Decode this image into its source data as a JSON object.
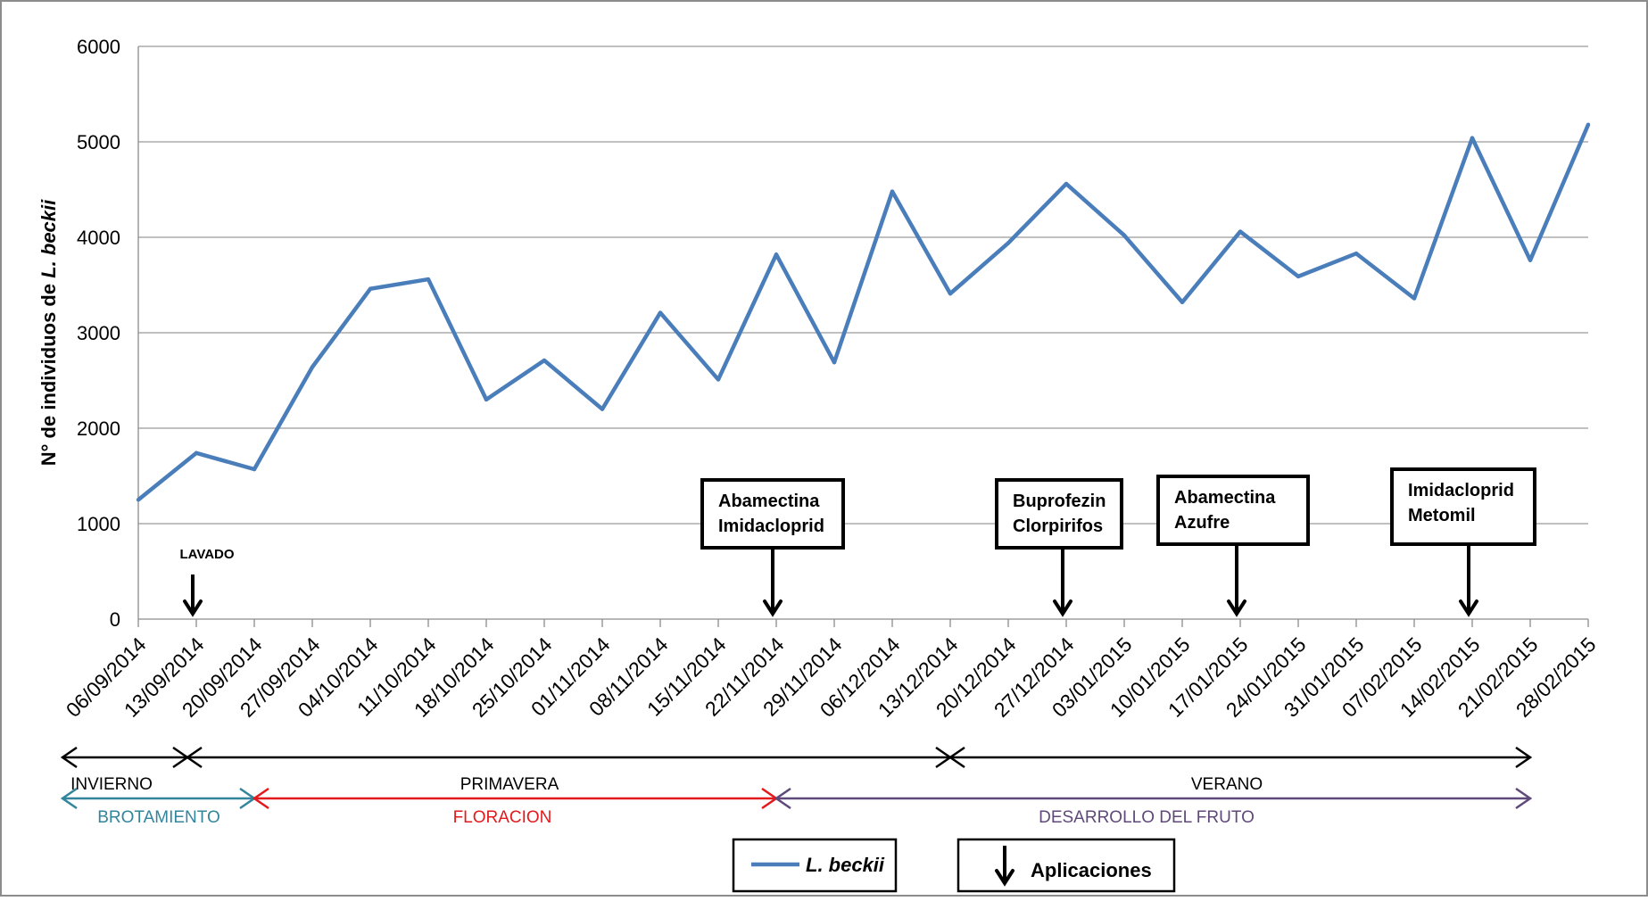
{
  "chart_data": {
    "type": "line",
    "ylabel_parts": [
      "N° de individuos de ",
      "L. beckii"
    ],
    "ylim": [
      0,
      6000
    ],
    "yticks": [
      0,
      1000,
      2000,
      3000,
      4000,
      5000,
      6000
    ],
    "grid": true,
    "line_color": "#4a7ebb",
    "categories": [
      "06/09/2014",
      "13/09/2014",
      "20/09/2014",
      "27/09/2014",
      "04/10/2014",
      "11/10/2014",
      "18/10/2014",
      "25/10/2014",
      "01/11/2014",
      "08/11/2014",
      "15/11/2014",
      "22/11/2014",
      "29/11/2014",
      "06/12/2014",
      "13/12/2014",
      "20/12/2014",
      "27/12/2014",
      "03/01/2015",
      "10/01/2015",
      "17/01/2015",
      "24/01/2015",
      "31/01/2015",
      "07/02/2015",
      "14/02/2015",
      "21/02/2015",
      "28/02/2015"
    ],
    "series": [
      {
        "name": "L. beckii",
        "values": [
          1250,
          1740,
          1570,
          2640,
          3460,
          3560,
          2300,
          2710,
          2200,
          3210,
          2510,
          3820,
          2690,
          4480,
          3410,
          3940,
          4560,
          4020,
          3320,
          4060,
          3590,
          3830,
          3360,
          5040,
          3760,
          5180
        ]
      }
    ],
    "annotations": [
      {
        "kind": "application",
        "date": "13/09/2014",
        "lines": [
          "LAVADO"
        ],
        "boxed": false
      },
      {
        "kind": "application",
        "date": "22/11/2014",
        "lines": [
          "Abamectina",
          "Imidacloprid"
        ],
        "boxed": true
      },
      {
        "kind": "application",
        "date": "27/12/2014",
        "lines": [
          "Buprofezin",
          "Clorpirifos"
        ],
        "boxed": true
      },
      {
        "kind": "application",
        "date": "17/01/2015",
        "lines": [
          "Abamectina",
          "Azufre"
        ],
        "boxed": true
      },
      {
        "kind": "application",
        "date": "14/02/2015",
        "lines": [
          "Imidacloprid",
          "Metomil"
        ],
        "boxed": true
      }
    ],
    "seasons": [
      {
        "label": "INVIERNO",
        "from": "06/09/2014",
        "to": "13/09/2014",
        "color": "#000000"
      },
      {
        "label": "PRIMAVERA",
        "from": "13/09/2014",
        "to": "13/12/2014",
        "color": "#000000"
      },
      {
        "label": "VERANO",
        "from": "13/12/2014",
        "to": "21/02/2015",
        "color": "#000000"
      }
    ],
    "phenology": [
      {
        "label": "BROTAMIENTO",
        "from": "06/09/2014",
        "to": "20/09/2014",
        "color": "#31859c"
      },
      {
        "label": "FLORACION",
        "from": "20/09/2014",
        "to": "22/11/2014",
        "color": "#e31a1c"
      },
      {
        "label": "DESARROLLO DEL FRUTO",
        "from": "22/11/2014",
        "to": "21/02/2015",
        "color": "#5f497a"
      }
    ],
    "legend": {
      "series_label": "L. beckii",
      "arrow_label": "Aplicaciones"
    }
  }
}
